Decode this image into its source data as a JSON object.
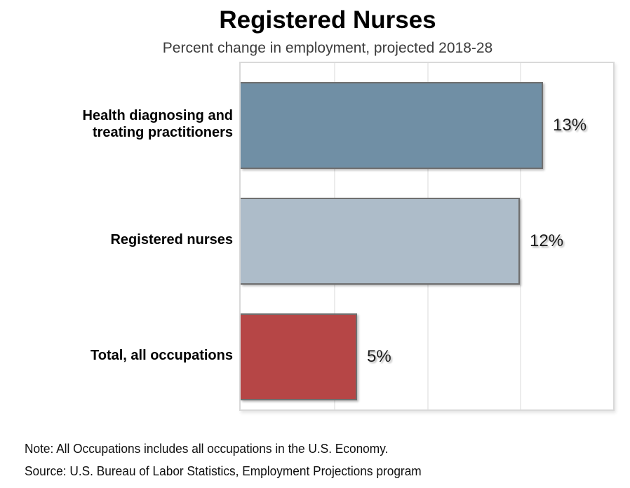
{
  "header": {
    "title": "Registered Nurses",
    "subtitle": "Percent change in employment, projected 2018-28"
  },
  "chart_data": {
    "type": "bar",
    "orientation": "horizontal",
    "title": "Registered Nurses",
    "subtitle": "Percent change in employment, projected 2018-28",
    "categories": [
      "Health diagnosing and treating practitioners",
      "Registered nurses",
      "Total, all occupations"
    ],
    "category_lines": [
      [
        "Health diagnosing and",
        "treating practitioners"
      ],
      [
        "Registered nurses"
      ],
      [
        "Total, all occupations"
      ]
    ],
    "values": [
      13,
      12,
      5
    ],
    "value_labels": [
      "13%",
      "12%",
      "5%"
    ],
    "bar_colors": [
      "#708FA5",
      "#ADBCC9",
      "#B64646"
    ],
    "bar_border_color": "#6f6f6f",
    "xlim": [
      0,
      16
    ],
    "gridline_step": 4,
    "grid": true,
    "gridline_color": "#ececec",
    "plot_border_color": "#d9d9d9",
    "tick_labels_shown": false,
    "legend": "none"
  },
  "footer": {
    "note": "Note: All Occupations includes all occupations in the U.S. Economy.",
    "source": "Source: U.S. Bureau of Labor Statistics, Employment Projections program"
  }
}
